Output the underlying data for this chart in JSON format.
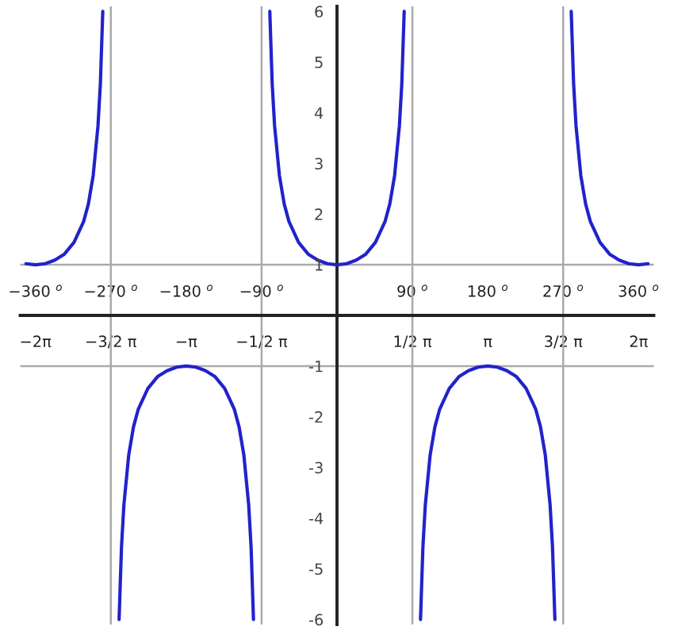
{
  "chart_data": {
    "type": "line",
    "xlim": [
      -6.6,
      6.6
    ],
    "ylim": [
      -6.1,
      6.1
    ],
    "xticks": [
      {
        "value": -6.2832,
        "label": "−2π"
      },
      {
        "value": -4.7124,
        "label": "−3/2 π"
      },
      {
        "value": -3.1416,
        "label": "−π"
      },
      {
        "value": -1.5708,
        "label": "−1/2 π"
      },
      {
        "value": 1.5708,
        "label": "1/2 π"
      },
      {
        "value": 3.1416,
        "label": "π"
      },
      {
        "value": 4.7124,
        "label": "3/2 π"
      },
      {
        "value": 6.2832,
        "label": "2π"
      }
    ],
    "x2lim": [
      -378.2,
      378.2
    ],
    "x2ticks": [
      {
        "value": -360,
        "label": "−360 $^{o}$"
      },
      {
        "value": -270,
        "label": "−270 $^{o}$"
      },
      {
        "value": -180,
        "label": "−180 $^{o}$"
      },
      {
        "value": -90,
        "label": "−90 $^{o}$"
      },
      {
        "value": 90,
        "label": "90 $^{o}$"
      },
      {
        "value": 180,
        "label": "180 $^{o}$"
      },
      {
        "value": 270,
        "label": "270 $^{o}$"
      },
      {
        "value": 360,
        "label": "360 $^{o}$"
      }
    ],
    "yticks": [
      -6,
      -5,
      -4,
      -3,
      -2,
      -1,
      1,
      2,
      3,
      4,
      5,
      6
    ],
    "grid": false,
    "marker": "none",
    "line_style": "solid",
    "ref_lines": [
      {
        "axis": "y",
        "value": 1,
        "label": null,
        "color": "#aaaaaa"
      },
      {
        "axis": "y",
        "value": -1,
        "label": null,
        "color": "#aaaaaa"
      },
      {
        "axis": "x",
        "value": -4.7124,
        "label": null,
        "color": "#aaaaaa"
      },
      {
        "axis": "x",
        "value": -1.5708,
        "label": null,
        "color": "#aaaaaa"
      },
      {
        "axis": "x",
        "value": 1.5708,
        "label": null,
        "color": "#aaaaaa"
      },
      {
        "axis": "x",
        "value": 4.7124,
        "label": null,
        "color": "#aaaaaa"
      }
    ],
    "series": [
      {
        "color": "#2222cc",
        "x": [
          -6.48,
          -6.28,
          -6.08,
          -5.88,
          -5.68,
          -5.48,
          -5.28,
          -5.18,
          -5.08,
          -4.98,
          -4.93,
          -4.88,
          -4.71,
          -4.54,
          -4.49,
          -4.44,
          -4.34,
          -4.24,
          -4.14,
          -3.94,
          -3.74,
          -3.54,
          -3.34,
          -3.14,
          -2.94,
          -2.74,
          -2.54,
          -2.34,
          -2.14,
          -2.04,
          -1.94,
          -1.84,
          -1.79,
          -1.74,
          -1.57,
          -1.4,
          -1.35,
          -1.3,
          -1.2,
          -1.1,
          -1.0,
          -0.8,
          -0.6,
          -0.4,
          -0.2,
          0,
          0.2,
          0.4,
          0.6,
          0.8,
          1.0,
          1.1,
          1.2,
          1.3,
          1.35,
          1.4,
          1.57,
          1.74,
          1.79,
          1.84,
          1.94,
          2.04,
          2.14,
          2.34,
          2.54,
          2.74,
          2.94,
          3.14,
          3.34,
          3.54,
          3.74,
          3.94,
          4.14,
          4.24,
          4.34,
          4.44,
          4.49,
          4.54,
          4.71,
          4.88,
          4.93,
          4.98,
          5.08,
          5.18,
          5.28,
          5.48,
          5.68,
          5.88,
          6.08,
          6.28,
          6.48
        ],
        "values": [
          1.02,
          1,
          1.02,
          1.09,
          1.21,
          1.44,
          1.85,
          2.2,
          2.76,
          3.74,
          4.57,
          6,
          null,
          -6,
          -4.57,
          -3.74,
          -2.76,
          -2.2,
          -1.85,
          -1.44,
          -1.21,
          -1.09,
          -1.02,
          -1,
          -1.02,
          -1.09,
          -1.21,
          -1.44,
          -1.85,
          -2.2,
          -2.76,
          -3.74,
          -4.57,
          -6,
          null,
          6,
          4.57,
          3.74,
          2.76,
          2.2,
          1.85,
          1.44,
          1.21,
          1.09,
          1.02,
          1,
          1.02,
          1.09,
          1.21,
          1.44,
          1.85,
          2.2,
          2.76,
          3.74,
          4.57,
          6,
          null,
          -6,
          -4.57,
          -3.74,
          -2.76,
          -2.2,
          -1.85,
          -1.44,
          -1.21,
          -1.09,
          -1.02,
          -1,
          -1.02,
          -1.09,
          -1.21,
          -1.44,
          -1.85,
          -2.2,
          -2.76,
          -3.74,
          -4.57,
          -6,
          null,
          6,
          4.57,
          3.74,
          2.76,
          2.2,
          1.85,
          1.44,
          1.21,
          1.09,
          1.02,
          1,
          1.02
        ]
      }
    ]
  }
}
